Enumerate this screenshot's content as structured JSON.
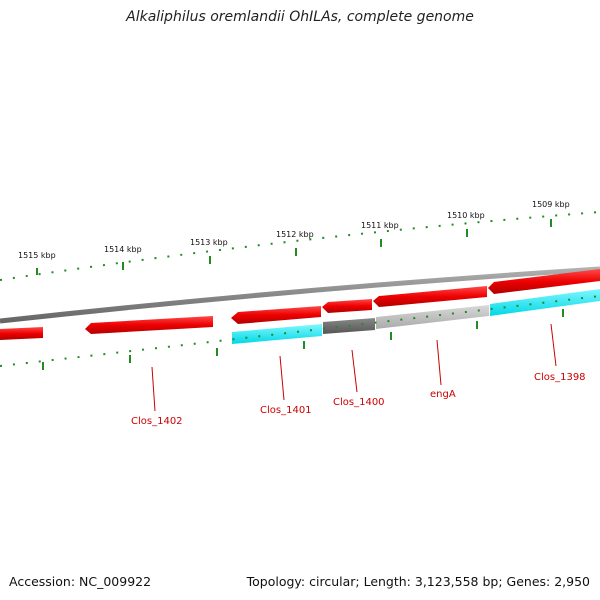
{
  "title": "Alkaliphilus oremlandii OhILAs, complete genome",
  "footer": {
    "accession": "Accession: NC_009922",
    "summary": "Topology: circular; Length: 3,123,558 bp; Genes: 2,950"
  },
  "ticks": [
    "1515 kbp",
    "1514 kbp",
    "1513 kbp",
    "1512 kbp",
    "1511 kbp",
    "1510 kbp",
    "1509 kbp"
  ],
  "genes": [
    "Clos_1402",
    "Clos_1401",
    "Clos_1400",
    "engA",
    "Clos_1398"
  ],
  "colors": {
    "gene_forward": "#ee0000",
    "gene_highlight": "#00e5ee",
    "gene_dark": "#666666",
    "gene_light": "#bbbbbb",
    "backbone": "#888888",
    "ticks": "#228b22",
    "labels": "#cc0000"
  }
}
